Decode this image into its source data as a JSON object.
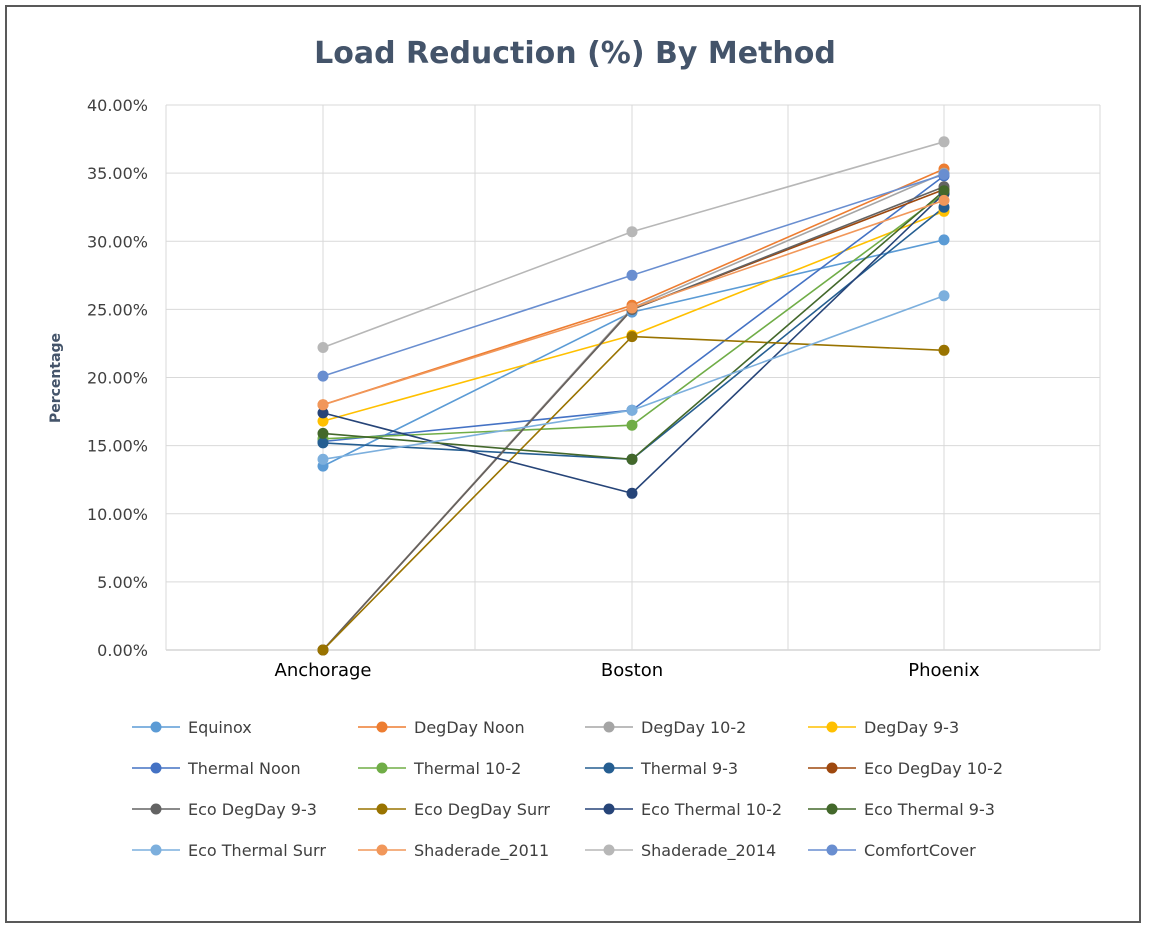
{
  "chart_data": {
    "type": "line",
    "title": "Load Reduction (%) By Method",
    "ylabel": "Percentage",
    "xlabel": "",
    "categories": [
      "Anchorage",
      "Boston",
      "Phoenix"
    ],
    "ylim": [
      0,
      40
    ],
    "yticks": [
      "0.00%",
      "5.00%",
      "10.00%",
      "15.00%",
      "20.00%",
      "25.00%",
      "30.00%",
      "35.00%",
      "40.00%"
    ],
    "grid": true,
    "legend_position": "bottom",
    "series": [
      {
        "name": "Equinox",
        "color": "#5b9bd5",
        "values": [
          13.5,
          24.8,
          30.1
        ]
      },
      {
        "name": "DegDay Noon",
        "color": "#ed7d31",
        "values": [
          18.0,
          25.3,
          35.3
        ]
      },
      {
        "name": "DegDay 10-2",
        "color": "#a5a5a5",
        "values": [
          0.0,
          25.1,
          35.0
        ]
      },
      {
        "name": "DegDay 9-3",
        "color": "#ffc000",
        "values": [
          16.8,
          23.1,
          32.2
        ]
      },
      {
        "name": "Thermal Noon",
        "color": "#4472c4",
        "values": [
          15.3,
          17.6,
          34.8
        ]
      },
      {
        "name": "Thermal 10-2",
        "color": "#70ad47",
        "values": [
          15.5,
          16.5,
          33.5
        ]
      },
      {
        "name": "Thermal 9-3",
        "color": "#255e91",
        "values": [
          15.2,
          14.0,
          32.5
        ]
      },
      {
        "name": "Eco DegDay 10-2",
        "color": "#9e480e",
        "values": [
          0.0,
          25.0,
          33.8
        ]
      },
      {
        "name": "Eco DegDay 9-3",
        "color": "#636363",
        "values": [
          0.0,
          25.0,
          34.0
        ]
      },
      {
        "name": "Eco DegDay Surr",
        "color": "#997300",
        "values": [
          0.0,
          23.0,
          22.0
        ]
      },
      {
        "name": "Eco Thermal 10-2",
        "color": "#264478",
        "values": [
          17.4,
          11.5,
          33.5
        ]
      },
      {
        "name": "Eco Thermal 9-3",
        "color": "#43682b",
        "values": [
          15.9,
          14.0,
          33.7
        ]
      },
      {
        "name": "Eco Thermal Surr",
        "color": "#7cafdd",
        "values": [
          14.0,
          17.6,
          26.0
        ]
      },
      {
        "name": "Shaderade_2011",
        "color": "#f1975a",
        "values": [
          18.0,
          25.1,
          33.0
        ]
      },
      {
        "name": "Shaderade_2014",
        "color": "#b7b7b7",
        "values": [
          22.2,
          30.7,
          37.3
        ]
      },
      {
        "name": "ComfortCover",
        "color": "#698ed0",
        "values": [
          20.1,
          27.5,
          34.9
        ]
      }
    ]
  }
}
